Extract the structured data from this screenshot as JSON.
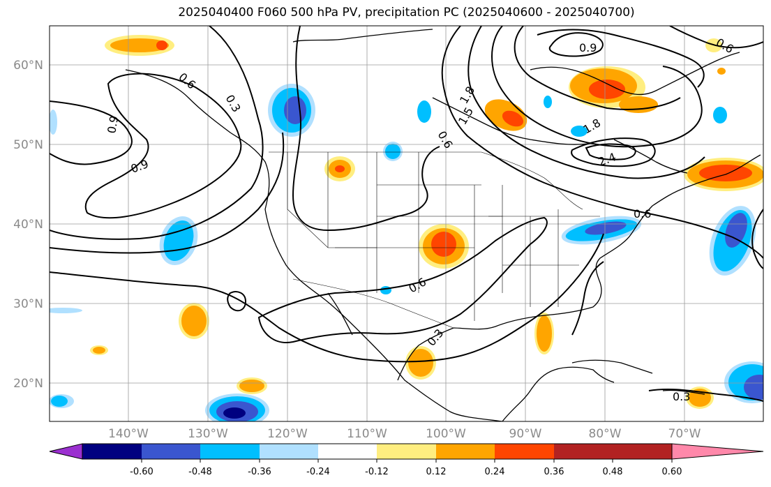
{
  "title": "2025040400 F060 500 hPa PV, precipitation PC (2025040600 - 2025040700)",
  "latitude_labels": [
    "60°N",
    "50°N",
    "40°N",
    "30°N",
    "20°N"
  ],
  "longitude_labels": [
    "140°W",
    "130°W",
    "120°W",
    "110°W",
    "100°W",
    "90°W",
    "80°W",
    "70°W"
  ],
  "pv_contour_labels": [
    "0.6",
    "0.9",
    "0.9",
    "0.3",
    "0.6",
    "0.6",
    "0.3",
    "0.3",
    "1.8",
    "1.5",
    "0.9",
    "1.8",
    "2.4",
    "0.6",
    "0.6"
  ],
  "colorbar": {
    "tick_labels": [
      "-0.60",
      "-0.48",
      "-0.36",
      "-0.24",
      "-0.12",
      "0.12",
      "0.24",
      "0.36",
      "0.48",
      "0.60"
    ],
    "colors": [
      "#9b30d0",
      "#000080",
      "#3a56cf",
      "#00bfff",
      "#b0e0ff",
      "#ffffff",
      "#ffee80",
      "#ffa500",
      "#ff4500",
      "#b22222",
      "#ff88aa"
    ]
  }
}
